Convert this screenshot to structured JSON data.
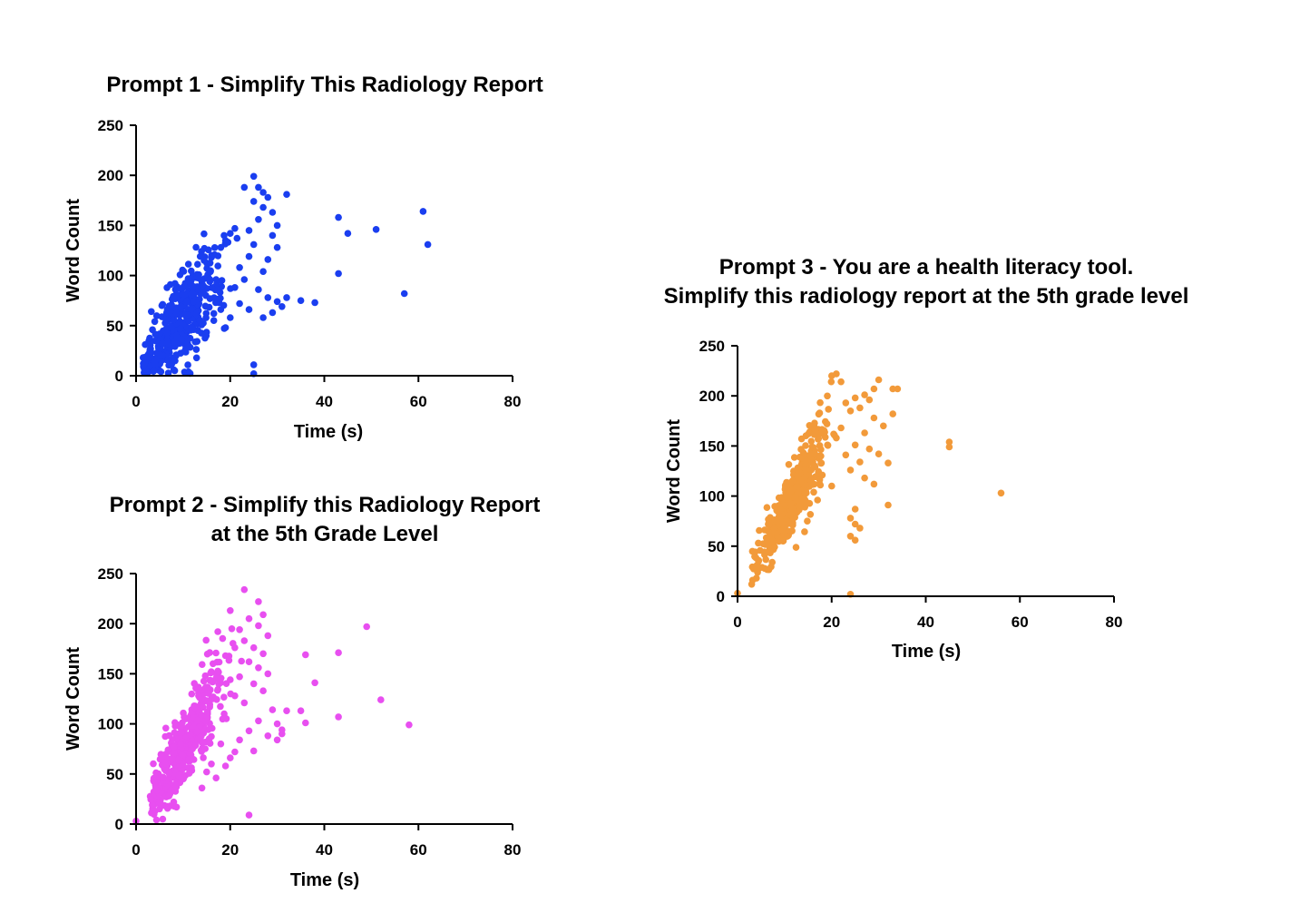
{
  "chart_data": [
    {
      "id": "p1",
      "type": "scatter",
      "title_lines": [
        "Prompt 1 - Simplify This Radiology Report"
      ],
      "xlabel": "Time (s)",
      "ylabel": "Word Count",
      "xlim": [
        0,
        80
      ],
      "ylim": [
        0,
        250
      ],
      "xticks": [
        0,
        20,
        40,
        60,
        80
      ],
      "yticks": [
        0,
        50,
        100,
        150,
        200,
        250
      ],
      "color": "#1a3ef0",
      "cluster": {
        "n": 420,
        "x_center": 9,
        "x_spread": 4.5,
        "x_min": 1.5,
        "slope": 5.8,
        "noise": 22
      },
      "points": [
        [
          25,
          199
        ],
        [
          23,
          188
        ],
        [
          26,
          188
        ],
        [
          27,
          183
        ],
        [
          28,
          178
        ],
        [
          32,
          181
        ],
        [
          25,
          174
        ],
        [
          27,
          168
        ],
        [
          29,
          163
        ],
        [
          30,
          150
        ],
        [
          26,
          156
        ],
        [
          24,
          145
        ],
        [
          21,
          147
        ],
        [
          20,
          142
        ],
        [
          29,
          140
        ],
        [
          30,
          128
        ],
        [
          28,
          116
        ],
        [
          27,
          104
        ],
        [
          25,
          131
        ],
        [
          24,
          119
        ],
        [
          22,
          108
        ],
        [
          23,
          96
        ],
        [
          26,
          86
        ],
        [
          28,
          78
        ],
        [
          30,
          74
        ],
        [
          29,
          63
        ],
        [
          31,
          69
        ],
        [
          27,
          58
        ],
        [
          35,
          75
        ],
        [
          38,
          73
        ],
        [
          32,
          78
        ],
        [
          24,
          66
        ],
        [
          22,
          72
        ],
        [
          20,
          58
        ],
        [
          18,
          66
        ],
        [
          19,
          48
        ],
        [
          21,
          88
        ],
        [
          17,
          96
        ],
        [
          16,
          118
        ],
        [
          18,
          128
        ],
        [
          19,
          135
        ],
        [
          43,
          158
        ],
        [
          45,
          142
        ],
        [
          51,
          146
        ],
        [
          61,
          164
        ],
        [
          62,
          131
        ],
        [
          43,
          102
        ],
        [
          57,
          82
        ],
        [
          25,
          11
        ],
        [
          25,
          2
        ],
        [
          8,
          6
        ],
        [
          2,
          4
        ],
        [
          4,
          14
        ]
      ]
    },
    {
      "id": "p2",
      "type": "scatter",
      "title_lines": [
        "Prompt 2  - Simplify this Radiology Report",
        "at the 5th Grade Level"
      ],
      "xlabel": "Time (s)",
      "ylabel": "Word Count",
      "xlim": [
        0,
        80
      ],
      "ylim": [
        0,
        250
      ],
      "xticks": [
        0,
        20,
        40,
        60,
        80
      ],
      "yticks": [
        0,
        50,
        100,
        150,
        200,
        250
      ],
      "color": "#e84ff0",
      "cluster": {
        "n": 440,
        "x_center": 10.5,
        "x_spread": 4,
        "x_min": 3,
        "slope": 7.8,
        "noise": 18
      },
      "points": [
        [
          23,
          234
        ],
        [
          26,
          222
        ],
        [
          20,
          213
        ],
        [
          27,
          209
        ],
        [
          24,
          205
        ],
        [
          22,
          194
        ],
        [
          26,
          198
        ],
        [
          28,
          188
        ],
        [
          23,
          183
        ],
        [
          25,
          176
        ],
        [
          21,
          176
        ],
        [
          27,
          170
        ],
        [
          19,
          168
        ],
        [
          24,
          162
        ],
        [
          26,
          156
        ],
        [
          28,
          150
        ],
        [
          22,
          147
        ],
        [
          20,
          144
        ],
        [
          25,
          140
        ],
        [
          27,
          133
        ],
        [
          21,
          128
        ],
        [
          23,
          121
        ],
        [
          29,
          114
        ],
        [
          26,
          103
        ],
        [
          24,
          93
        ],
        [
          28,
          88
        ],
        [
          30,
          84
        ],
        [
          31,
          90
        ],
        [
          22,
          84
        ],
        [
          25,
          73
        ],
        [
          18,
          80
        ],
        [
          20,
          66
        ],
        [
          16,
          60
        ],
        [
          17,
          46
        ],
        [
          14,
          36
        ],
        [
          15,
          52
        ],
        [
          19,
          58
        ],
        [
          21,
          72
        ],
        [
          30,
          100
        ],
        [
          32,
          113
        ],
        [
          35,
          113
        ],
        [
          36,
          101
        ],
        [
          36,
          169
        ],
        [
          38,
          141
        ],
        [
          43,
          171
        ],
        [
          49,
          197
        ],
        [
          52,
          124
        ],
        [
          58,
          99
        ],
        [
          43,
          107
        ],
        [
          31,
          94
        ],
        [
          24,
          9
        ],
        [
          0,
          3
        ],
        [
          7,
          28
        ],
        [
          8,
          22
        ]
      ]
    },
    {
      "id": "p3",
      "type": "scatter",
      "title_lines": [
        "Prompt 3 - You are a health literacy tool.",
        "Simplify this radiology report at the 5th grade level"
      ],
      "xlabel": "Time (s)",
      "ylabel": "Word Count",
      "xlim": [
        0,
        80
      ],
      "ylim": [
        0,
        250
      ],
      "xticks": [
        0,
        20,
        40,
        60,
        80
      ],
      "yticks": [
        0,
        50,
        100,
        150,
        200,
        250
      ],
      "color": "#f29a3a",
      "cluster": {
        "n": 460,
        "x_center": 11.5,
        "x_spread": 3.5,
        "x_min": 3,
        "slope": 8.3,
        "noise": 14
      },
      "points": [
        [
          20,
          220
        ],
        [
          21,
          222
        ],
        [
          22,
          214
        ],
        [
          30,
          216
        ],
        [
          33,
          207
        ],
        [
          29,
          207
        ],
        [
          27,
          201
        ],
        [
          28,
          196
        ],
        [
          25,
          198
        ],
        [
          23,
          193
        ],
        [
          26,
          188
        ],
        [
          24,
          185
        ],
        [
          29,
          178
        ],
        [
          31,
          170
        ],
        [
          27,
          163
        ],
        [
          22,
          168
        ],
        [
          19,
          172
        ],
        [
          21,
          158
        ],
        [
          25,
          151
        ],
        [
          28,
          147
        ],
        [
          30,
          142
        ],
        [
          23,
          141
        ],
        [
          26,
          134
        ],
        [
          24,
          126
        ],
        [
          27,
          118
        ],
        [
          29,
          112
        ],
        [
          32,
          133
        ],
        [
          32,
          91
        ],
        [
          25,
          87
        ],
        [
          24,
          78
        ],
        [
          25,
          72
        ],
        [
          26,
          68
        ],
        [
          24,
          60
        ],
        [
          25,
          56
        ],
        [
          18,
          121
        ],
        [
          20,
          110
        ],
        [
          17,
          96
        ],
        [
          33,
          182
        ],
        [
          34,
          207
        ],
        [
          45,
          154
        ],
        [
          45,
          149
        ],
        [
          56,
          103
        ],
        [
          24,
          2
        ],
        [
          0,
          3
        ],
        [
          3,
          12
        ],
        [
          4,
          18
        ],
        [
          4,
          28
        ]
      ]
    }
  ]
}
